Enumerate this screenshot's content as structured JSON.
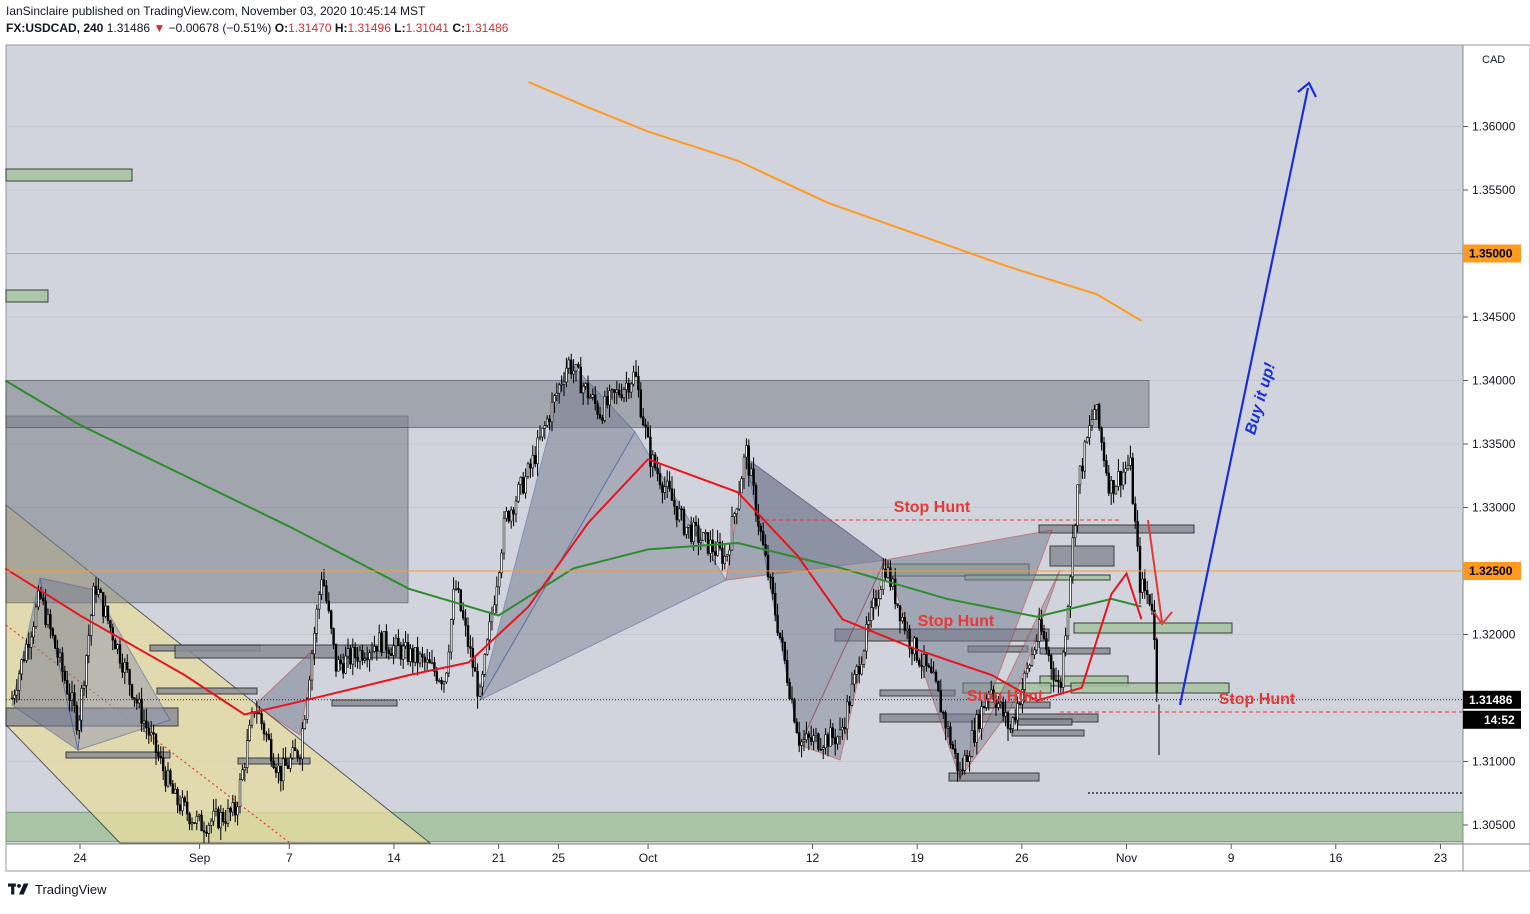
{
  "header": {
    "publisher_line": "IanSinclaire published on TradingView.com, November 03, 2020 10:45:14 MST",
    "symbol": "FX:USDCAD, 240",
    "last": "1.31486",
    "arrow": "▼",
    "change": "−0.00678 (−0.51%)",
    "o_label": "O:",
    "o_value": "1.31470",
    "h_label": "H:",
    "h_value": "1.31496",
    "l_label": "L:",
    "l_value": "1.31041",
    "c_label": "C:",
    "c_value": "1.31486"
  },
  "footer": {
    "brand": "TradingView"
  },
  "colors": {
    "background": "#d1d4dc",
    "candle": "#000000",
    "ema_fast": "#e8151f",
    "ema_slow": "#2e8b2e",
    "ma_long": "#ff9a1f",
    "level_line": "#ff9a1f",
    "annotation": "#e53935",
    "arrow_up": "#1b2fd6",
    "supply_zone": "#7b7f8a",
    "demand_zone": "#a5c4a0",
    "channel": "#e8dca0"
  },
  "chart_data": {
    "type": "candlestick",
    "symbol": "FX:USDCAD",
    "timeframe": "240",
    "currency_label": "CAD",
    "y_ticks": [
      "1.36000",
      "1.35500",
      "1.35000",
      "1.34500",
      "1.34000",
      "1.33500",
      "1.33000",
      "1.32500",
      "1.32000",
      "1.31500",
      "1.31000",
      "1.30500"
    ],
    "x_ticks": [
      "24",
      "Sep",
      "7",
      "14",
      "21",
      "25",
      "Oct",
      "12",
      "19",
      "26",
      "Nov",
      "9",
      "16",
      "23"
    ],
    "ylim": [
      1.3035,
      1.3635
    ],
    "price_badges": [
      {
        "value": "1.35000",
        "kind": "level"
      },
      {
        "value": "1.32500",
        "kind": "level"
      },
      {
        "value": "1.31486",
        "kind": "last"
      },
      {
        "value": "14:52",
        "kind": "countdown"
      }
    ],
    "horizontal_levels": [
      1.35,
      1.325
    ],
    "annotations": [
      {
        "text": "Stop Hunt",
        "date": "Oct 15"
      },
      {
        "text": "Stop Hunt",
        "date": "Oct 17"
      },
      {
        "text": "Stop Hunt",
        "date": "Oct 21"
      },
      {
        "text": "Stop Hunt",
        "date": "Nov 5"
      },
      {
        "text": "Buy it up!",
        "date": "Nov 10"
      }
    ],
    "ma_long_path": [
      [
        1.3635,
        "Sep 23"
      ],
      [
        1.3615,
        "Sep 27"
      ],
      [
        1.3596,
        "Oct 1"
      ],
      [
        1.3573,
        "Oct 7"
      ],
      [
        1.354,
        "Oct 13"
      ],
      [
        1.3515,
        "Oct 19"
      ],
      [
        1.349,
        "Oct 25"
      ],
      [
        1.3468,
        "Oct 31"
      ],
      [
        1.3447,
        "Nov 3"
      ]
    ],
    "ema_slow_path": [
      [
        1.34,
        "Aug 19"
      ],
      [
        1.3365,
        "Aug 24"
      ],
      [
        1.3325,
        "Aug 31"
      ],
      [
        1.3285,
        "Sep 7"
      ],
      [
        1.3236,
        "Sep 15"
      ],
      [
        1.3215,
        "Sep 21"
      ],
      [
        1.3252,
        "Sep 26"
      ],
      [
        1.3267,
        "Oct 1"
      ],
      [
        1.3272,
        "Oct 7"
      ],
      [
        1.3252,
        "Oct 14"
      ],
      [
        1.3228,
        "Oct 21"
      ],
      [
        1.3214,
        "Oct 27"
      ],
      [
        1.3228,
        "Nov 1"
      ],
      [
        1.3222,
        "Nov 3"
      ]
    ],
    "ema_fast_path": [
      [
        1.3252,
        "Aug 19"
      ],
      [
        1.3215,
        "Aug 24"
      ],
      [
        1.3168,
        "Aug 31"
      ],
      [
        1.3137,
        "Sep 4"
      ],
      [
        1.3148,
        "Sep 8"
      ],
      [
        1.3168,
        "Sep 15"
      ],
      [
        1.3178,
        "Sep 19"
      ],
      [
        1.3222,
        "Sep 23"
      ],
      [
        1.3288,
        "Sep 27"
      ],
      [
        1.3338,
        "Oct 1"
      ],
      [
        1.3312,
        "Oct 7"
      ],
      [
        1.3262,
        "Oct 11"
      ],
      [
        1.3212,
        "Oct 14"
      ],
      [
        1.3188,
        "Oct 19"
      ],
      [
        1.3168,
        "Oct 24"
      ],
      [
        1.3148,
        "Oct 27"
      ],
      [
        1.3158,
        "Oct 30"
      ],
      [
        1.3232,
        "Nov 1"
      ],
      [
        1.3248,
        "Nov 2"
      ],
      [
        1.3212,
        "Nov 3"
      ]
    ]
  }
}
